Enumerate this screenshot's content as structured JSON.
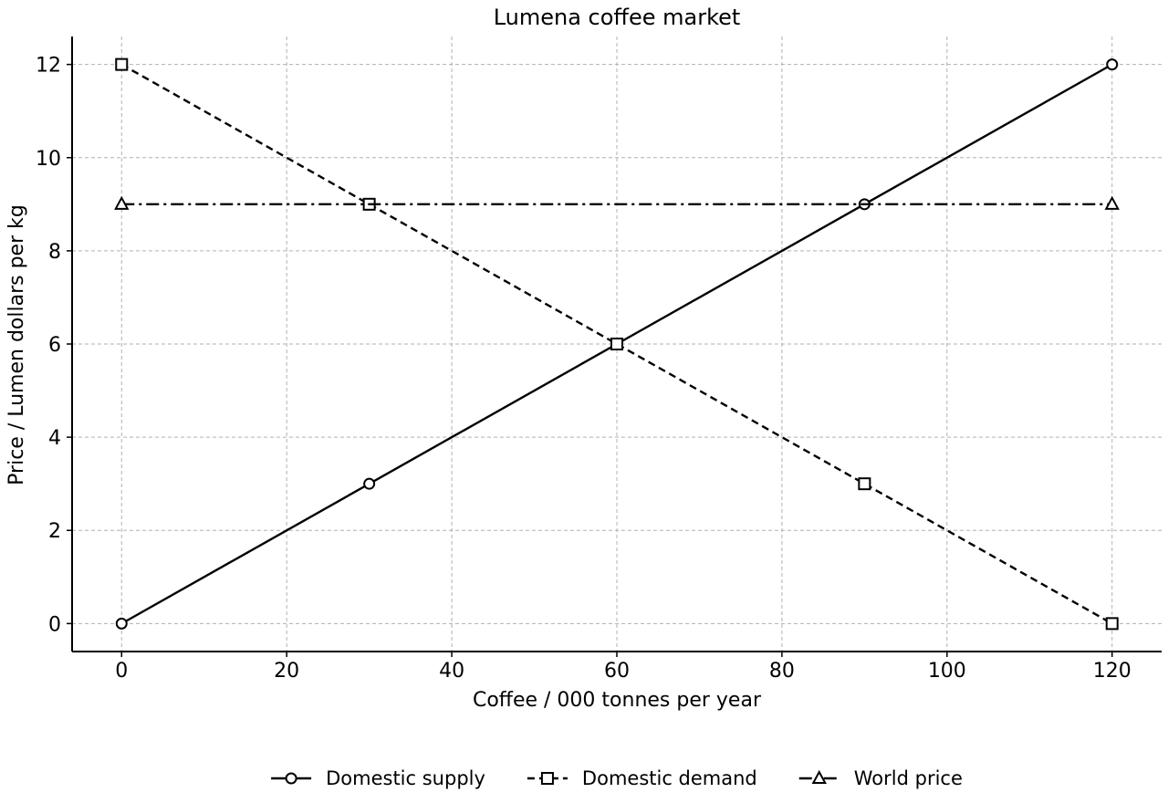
{
  "chart_data": {
    "type": "line",
    "title": "Lumena coffee market",
    "xlabel": "Coffee / 000 tonnes per year",
    "ylabel": "Price / Lumen dollars per kg",
    "xlim": [
      -6,
      126
    ],
    "ylim": [
      -0.6,
      12.6
    ],
    "xticks": [
      0,
      20,
      40,
      60,
      80,
      100,
      120
    ],
    "yticks": [
      0,
      2,
      4,
      6,
      8,
      10,
      12
    ],
    "grid": true,
    "legend_position": "bottom-center",
    "series": [
      {
        "name": "Domestic supply",
        "style": "solid",
        "marker": "circle",
        "x": [
          0,
          30,
          60,
          90,
          120
        ],
        "y": [
          0,
          3,
          6,
          9,
          12
        ]
      },
      {
        "name": "Domestic demand",
        "style": "dashed",
        "marker": "square",
        "x": [
          0,
          30,
          60,
          90,
          120
        ],
        "y": [
          12,
          9,
          6,
          3,
          0
        ]
      },
      {
        "name": "World price",
        "style": "dashdot",
        "marker": "triangle",
        "x": [
          0,
          120
        ],
        "y": [
          9,
          9
        ]
      }
    ]
  }
}
